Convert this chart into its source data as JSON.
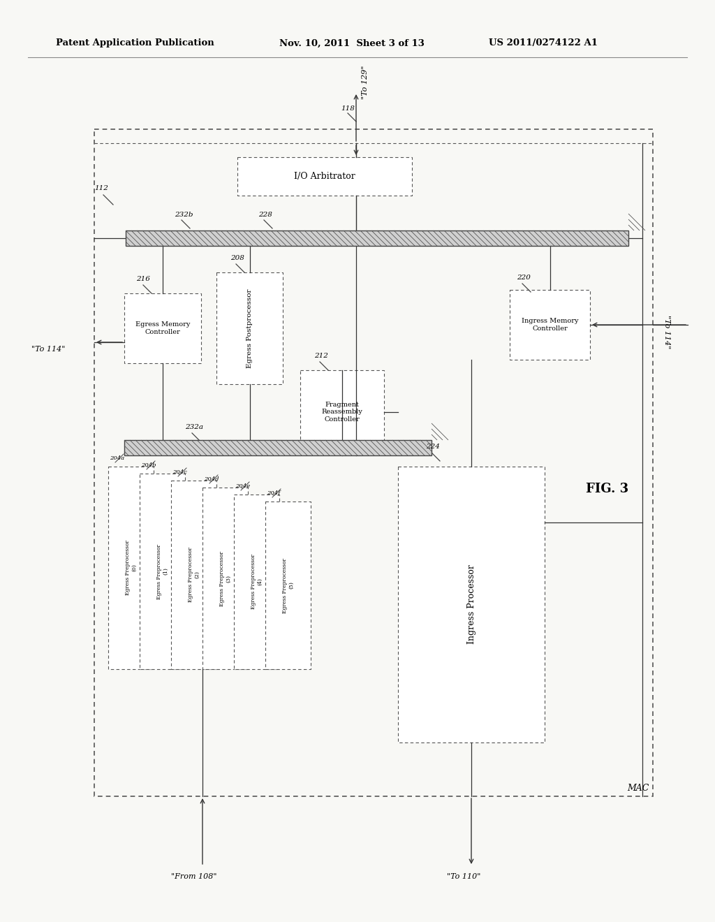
{
  "bg_color": "#f5f5f0",
  "header_text": "Patent Application Publication",
  "header_date": "Nov. 10, 2011  Sheet 3 of 13",
  "header_patent": "US 2011/0274122 A1",
  "fig_label": "FIG. 3",
  "mac_label": "MAC"
}
